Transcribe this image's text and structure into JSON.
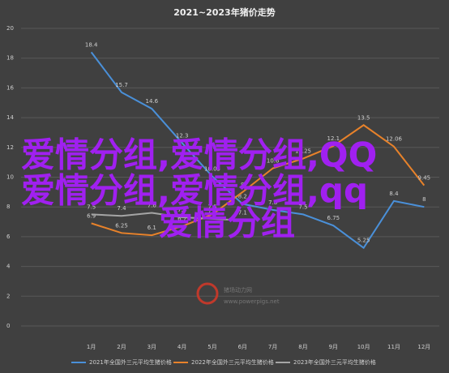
{
  "chart_data": {
    "type": "line",
    "title": "2021~2023年猪价走势",
    "categories": [
      "1月",
      "2月",
      "3月",
      "4月",
      "5月",
      "6月",
      "7月",
      "8月",
      "9月",
      "10月",
      "11月",
      "12月"
    ],
    "series": [
      {
        "name": "2021年全国外三元平均生猪价格",
        "color": "#4a90d9",
        "values": [
          18.4,
          15.7,
          14.6,
          12.3,
          10.05,
          8.2,
          7.8,
          7.5,
          6.75,
          5.25,
          8.4,
          8.0
        ]
      },
      {
        "name": "2022年全国外三元平均生猪价格",
        "color": "#e8822a",
        "values": [
          6.9,
          6.25,
          6.1,
          6.7,
          7.5,
          9.0,
          10.6,
          11.25,
          12.1,
          13.5,
          12.06,
          9.45
        ]
      },
      {
        "name": "2023年全国外三元平均生猪价格",
        "color": "#a5a5a5",
        "values": [
          7.5,
          7.4,
          7.6,
          7.3,
          7.2,
          7.1,
          null,
          null,
          null,
          null,
          null,
          null
        ]
      }
    ],
    "ylim": [
      0,
      20
    ],
    "yticks": [
      0,
      2,
      4,
      6,
      8,
      10,
      12,
      14,
      16,
      18,
      20
    ],
    "grid": true,
    "watermark": [
      "猪场动力网",
      "www.powerpigs.net"
    ],
    "overlay": [
      "爱情分组,爱情分组,QQ",
      "爱情分组,爱情分组,qq",
      "爱情分组"
    ]
  }
}
